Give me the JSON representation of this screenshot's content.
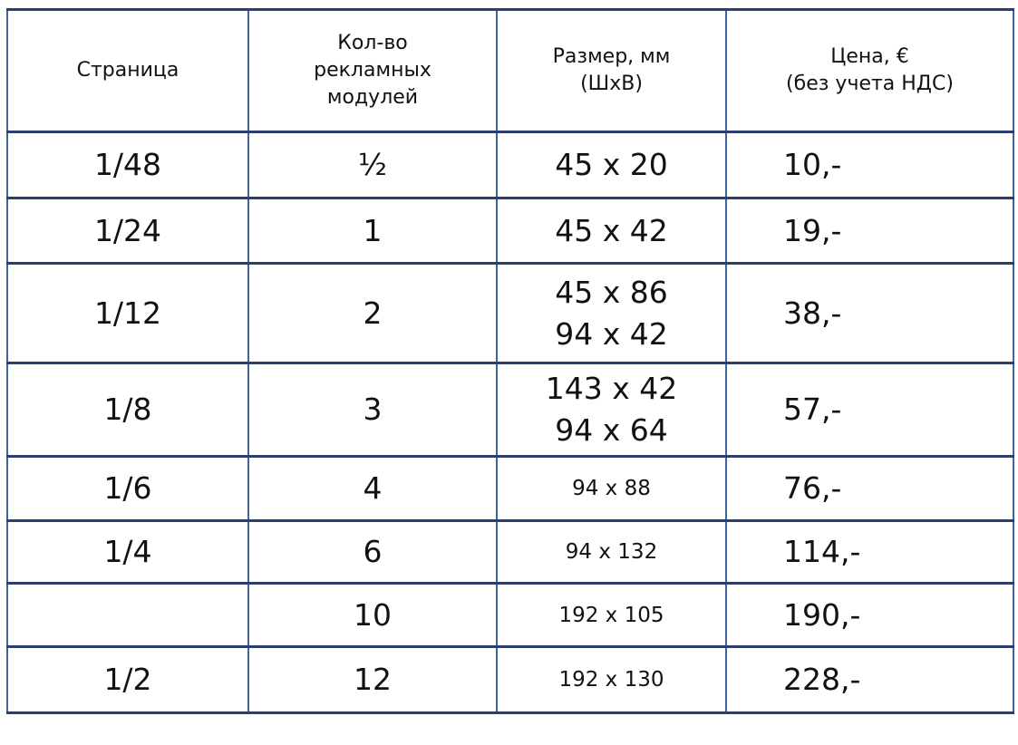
{
  "headers": [
    "Страница",
    "Кол-во\nрекламных\nмодулей",
    "Размер, мм\n(ШхВ)",
    "Цена, €\n(без учета НДС)"
  ],
  "rows": [
    {
      "page": "1/48",
      "modules": "½",
      "size": [
        "45 x 20"
      ],
      "price": "10,-",
      "small": false
    },
    {
      "page": "1/24",
      "modules": "1",
      "size": [
        "45 x 42"
      ],
      "price": "19,-",
      "small": false
    },
    {
      "page": "1/12",
      "modules": "2",
      "size": [
        "45 x 86",
        "94 x 42"
      ],
      "price": "38,-",
      "small": false
    },
    {
      "page": "1/8",
      "modules": "3",
      "size": [
        "143 x 42",
        "94 x 64"
      ],
      "price": "57,-",
      "small": false
    },
    {
      "page": "1/6",
      "modules": "4",
      "size": [
        "94 x 88"
      ],
      "price": "76,-",
      "small": true
    },
    {
      "page": "1/4",
      "modules": "6",
      "size": [
        "94 x 132"
      ],
      "price": "114,-",
      "small": true
    },
    {
      "page": "",
      "modules": "10",
      "size": [
        "192 x 105"
      ],
      "price": "190,-",
      "small": true
    },
    {
      "page": "1/2",
      "modules": "12",
      "size": [
        "192 x 130"
      ],
      "price": "228,-",
      "small": true
    }
  ],
  "colors": {
    "horizontal_border": "#2c3f6e",
    "vertical_border": "#3a67a3"
  }
}
